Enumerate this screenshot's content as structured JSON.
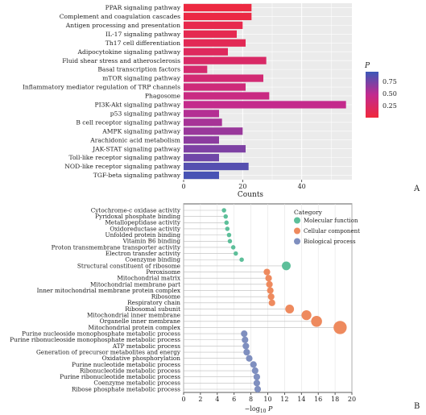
{
  "chart_data": [
    {
      "panel": "A",
      "type": "bar",
      "orientation": "horizontal",
      "xlabel": "Counts",
      "ylabel": "",
      "xlim": [
        0,
        57
      ],
      "xticks": [
        0,
        20,
        40
      ],
      "grid": true,
      "legend": {
        "title": "P",
        "placement": "right",
        "ticks": [
          0.75,
          0.5,
          0.25
        ],
        "range": [
          0.02,
          0.98
        ]
      },
      "categories": [
        "PPAR signaling pathway",
        "Complement and coagulation cascades",
        "Antigen processing and presentation",
        "IL-17 signaling pathway",
        "Th17 cell differentiation",
        "Adipocytokine signaling pathway",
        "Fluid shear stress and atherosclerosis",
        "Basal transcription factors",
        "mTOR signaling pathway",
        "Inflammatory mediator regulation of TRP channels",
        "Phagosome",
        "PI3K-Akt signaling pathway",
        "p53 signaling pathway",
        "B cell receptor signaling pathway",
        "AMPK signaling pathway",
        "Arachidonic acid metabolism",
        "JAK-STAT signaling pathway",
        "Toll-like receptor signaling pathway",
        "NOD-like receptor signaling pathway",
        "TGF-beta signaling pathway"
      ],
      "values": [
        23,
        23,
        20,
        18,
        21,
        15,
        28,
        8,
        27,
        21,
        29,
        55,
        12,
        13,
        20,
        12,
        21,
        12,
        22,
        12
      ],
      "p_values": [
        0.03,
        0.05,
        0.1,
        0.12,
        0.15,
        0.2,
        0.25,
        0.3,
        0.33,
        0.37,
        0.42,
        0.48,
        0.55,
        0.6,
        0.65,
        0.7,
        0.75,
        0.8,
        0.9,
        0.95
      ]
    },
    {
      "panel": "B",
      "type": "scatter",
      "style": "lollipop",
      "xlabel": "−log10 P",
      "ylabel": "",
      "xlim": [
        0,
        20
      ],
      "xticks": [
        0,
        2,
        4,
        6,
        8,
        10,
        12,
        14,
        16,
        18,
        20
      ],
      "grid": true,
      "legend": {
        "title": "Category",
        "placement": "right",
        "entries": [
          {
            "name": "Molecular function",
            "color": "#5dbf9a"
          },
          {
            "name": "Cellular component",
            "color": "#ee8a5e"
          },
          {
            "name": "Biological process",
            "color": "#7f8fbf"
          }
        ]
      },
      "categories": [
        "Cytochrome-c oxidase activity",
        "Pyridoxal phosphate binding",
        "Metallopeptidase activity",
        "Oxidoreductase activity",
        "Unfolded protein binding",
        "Vitamin B6 binding",
        "Proton transmembrane transporter activity",
        "Electron transfer activity",
        "Coenzyme binding",
        "Structural constituent of ribosome",
        "Peroxisome",
        "Mitochondrial matrix",
        "Mitochondrial membrane part",
        "Inner mitochondrial membrane protein complex",
        "Ribosome",
        "Respiratory chain",
        "Ribosomal subunit",
        "Mitochondrial inner membrane",
        "Organelle inner membrane",
        "Mitochondrial protein complex",
        "Purine nucleoside monophosphate metabolic process",
        "Purine ribonucleoside monophosphate metabolic process",
        "ATP metabolic process",
        "Generation of precursor metabolites and energy",
        "Oxidative phosphorylation",
        "Purine nucleotide metabolic process",
        "Ribonucleotide metabolic process",
        "Purine ribonucleotide metabolic process",
        "Coenzyme metabolic process",
        "Ribose phosphate metabolic process"
      ],
      "values": [
        4.8,
        5.0,
        5.1,
        5.2,
        5.4,
        5.5,
        5.9,
        6.2,
        6.9,
        12.2,
        9.9,
        10.1,
        10.2,
        10.3,
        10.4,
        10.5,
        12.6,
        14.6,
        15.8,
        18.6,
        7.2,
        7.3,
        7.4,
        7.5,
        7.8,
        8.3,
        8.5,
        8.7,
        8.7,
        8.8
      ],
      "category_group": [
        "MF",
        "MF",
        "MF",
        "MF",
        "MF",
        "MF",
        "MF",
        "MF",
        "MF",
        "MF",
        "CC",
        "CC",
        "CC",
        "CC",
        "CC",
        "CC",
        "CC",
        "CC",
        "CC",
        "CC",
        "BP",
        "BP",
        "BP",
        "BP",
        "BP",
        "BP",
        "BP",
        "BP",
        "BP",
        "BP"
      ],
      "sizes": [
        1,
        1,
        1,
        1,
        1,
        1,
        1,
        1,
        1,
        3,
        2,
        2,
        2,
        2,
        2,
        2,
        3,
        3.5,
        4,
        5,
        2,
        2,
        2,
        2,
        2,
        2,
        2,
        2,
        2,
        2
      ]
    }
  ],
  "panel_labels": {
    "a": "A",
    "b": "B"
  },
  "legend_a": {
    "title": "P",
    "ticks": [
      "0.75",
      "0.50",
      "0.25"
    ]
  },
  "legend_b": {
    "title": "Category"
  },
  "colors": {
    "bar_low_p": "#f0293c",
    "bar_mid_p": "#c22a8f",
    "bar_high_p": "#3a58b8",
    "mf": "#5dbf9a",
    "cc": "#ee8a5e",
    "bp": "#7f8fbf"
  }
}
